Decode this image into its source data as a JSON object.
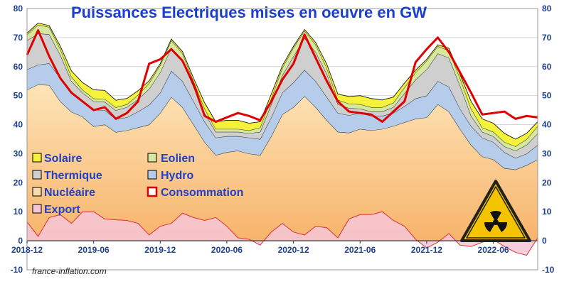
{
  "chart_data": {
    "type": "area",
    "title": "Puissances Electriques mises en oeuvre en GW",
    "watermark": "france-inflation.com",
    "ylim": [
      -10,
      80
    ],
    "yticks": [
      -10,
      0,
      10,
      20,
      30,
      40,
      50,
      60,
      70,
      80
    ],
    "xticks": [
      "2018-12",
      "2019-06",
      "2019-12",
      "2020-06",
      "2020-12",
      "2021-06",
      "2021-12",
      "2022-06"
    ],
    "stack_order": [
      "Nucléaire",
      "Hydro",
      "Thermique",
      "Eolien",
      "Solaire"
    ],
    "x": [
      "2018-12",
      "2019-01",
      "2019-02",
      "2019-03",
      "2019-04",
      "2019-05",
      "2019-06",
      "2019-07",
      "2019-08",
      "2019-09",
      "2019-10",
      "2019-11",
      "2019-12",
      "2020-01",
      "2020-02",
      "2020-03",
      "2020-04",
      "2020-05",
      "2020-06",
      "2020-07",
      "2020-08",
      "2020-09",
      "2020-10",
      "2020-11",
      "2020-12",
      "2021-01",
      "2021-02",
      "2021-03",
      "2021-04",
      "2021-05",
      "2021-06",
      "2021-07",
      "2021-08",
      "2021-09",
      "2021-10",
      "2021-11",
      "2021-12",
      "2022-01",
      "2022-02",
      "2022-03",
      "2022-04",
      "2022-05",
      "2022-06",
      "2022-07",
      "2022-08",
      "2022-09",
      "2022-10"
    ],
    "series": [
      {
        "name": "Nucléaire",
        "color": "#f9c88a",
        "values": [
          52.0,
          53.8,
          53.6,
          48.0,
          44.4,
          42.7,
          39.4,
          40.0,
          37.4,
          38.0,
          39.0,
          40.0,
          44.0,
          49.5,
          46.0,
          40.0,
          34.0,
          29.5,
          30.5,
          31.0,
          30.0,
          29.5,
          36.0,
          43.5,
          46.0,
          49.8,
          46.0,
          41.5,
          37.5,
          37.2,
          38.5,
          38.0,
          38.5,
          39.5,
          40.8,
          42.0,
          42.5,
          47.0,
          44.5,
          38.5,
          33.0,
          29.0,
          28.0,
          25.0,
          24.5,
          26.0,
          28.0
        ]
      },
      {
        "name": "Hydro",
        "color": "#b5cdea",
        "values": [
          7.0,
          6.8,
          7.5,
          8.0,
          6.6,
          5.3,
          5.6,
          5.0,
          4.5,
          4.5,
          5.5,
          6.8,
          7.0,
          9.0,
          9.0,
          8.0,
          7.0,
          6.0,
          5.5,
          5.0,
          5.5,
          5.5,
          6.5,
          7.5,
          8.5,
          9.0,
          9.0,
          8.0,
          6.5,
          6.0,
          5.5,
          5.0,
          4.5,
          4.5,
          5.5,
          7.0,
          7.5,
          8.0,
          8.5,
          7.0,
          6.5,
          6.5,
          6.0,
          5.5,
          4.0,
          4.0,
          5.0
        ]
      },
      {
        "name": "Thermique",
        "color": "#cfcfcf",
        "values": [
          10.0,
          10.8,
          10.0,
          8.0,
          4.0,
          3.0,
          3.0,
          2.8,
          3.0,
          3.5,
          4.2,
          5.5,
          7.0,
          8.0,
          7.0,
          5.0,
          3.0,
          2.0,
          1.5,
          1.5,
          1.5,
          2.5,
          4.5,
          6.0,
          9.0,
          11.0,
          10.0,
          8.0,
          3.0,
          2.5,
          1.5,
          1.5,
          1.5,
          2.0,
          4.5,
          6.5,
          9.0,
          9.5,
          10.0,
          8.0,
          3.5,
          2.0,
          2.0,
          2.0,
          2.5,
          3.0,
          4.0
        ]
      },
      {
        "name": "Eolien",
        "color": "#d6e8a0",
        "values": [
          2.0,
          3.0,
          2.5,
          2.0,
          1.5,
          1.0,
          1.0,
          1.0,
          1.0,
          1.0,
          1.5,
          2.0,
          2.5,
          2.5,
          2.5,
          2.0,
          1.5,
          1.0,
          1.0,
          1.0,
          1.0,
          1.5,
          2.0,
          2.5,
          3.0,
          2.5,
          2.5,
          2.0,
          1.5,
          1.5,
          1.5,
          1.5,
          1.5,
          1.5,
          2.0,
          2.5,
          3.0,
          2.5,
          2.5,
          2.5,
          2.5,
          1.5,
          1.5,
          1.5,
          1.5,
          2.0,
          2.5
        ]
      },
      {
        "name": "Solaire",
        "color": "#f5f23a",
        "values": [
          0.5,
          0.6,
          0.5,
          1.0,
          2.0,
          2.5,
          3.0,
          3.0,
          2.5,
          2.0,
          1.5,
          0.8,
          0.5,
          0.5,
          0.7,
          1.0,
          2.0,
          2.5,
          3.0,
          3.0,
          2.5,
          2.0,
          1.5,
          0.8,
          0.5,
          0.5,
          0.8,
          1.3,
          2.0,
          2.5,
          3.0,
          3.0,
          2.5,
          2.0,
          1.5,
          0.8,
          0.5,
          0.5,
          0.8,
          1.3,
          2.5,
          3.0,
          3.0,
          3.0,
          2.5,
          2.0,
          1.5
        ]
      },
      {
        "name": "Consommation",
        "color": "#e00000",
        "values": [
          64.0,
          72.5,
          63.5,
          56.0,
          51.0,
          48.0,
          45.0,
          46.0,
          42.0,
          44.0,
          48.0,
          61.0,
          62.5,
          66.0,
          62.0,
          54.0,
          43.0,
          41.0,
          42.5,
          44.0,
          43.0,
          41.5,
          48.0,
          55.5,
          61.0,
          71.0,
          63.0,
          55.0,
          48.0,
          44.5,
          44.0,
          43.5,
          41.0,
          44.5,
          48.0,
          61.5,
          66.0,
          70.0,
          65.0,
          58.0,
          51.0,
          43.5,
          44.0,
          44.5,
          42.0,
          43.0,
          42.5
        ]
      },
      {
        "name": "Export",
        "color": "#f6c6d8",
        "values": [
          6.5,
          1.5,
          8.0,
          9.0,
          6.0,
          10.0,
          10.0,
          7.5,
          7.2,
          7.0,
          6.0,
          2.0,
          5.0,
          6.0,
          9.5,
          8.0,
          7.0,
          8.0,
          5.0,
          1.0,
          0.5,
          -1.5,
          3.0,
          6.0,
          3.0,
          2.0,
          5.0,
          4.5,
          1.0,
          7.5,
          9.0,
          9.0,
          10.0,
          7.0,
          5.0,
          0.5,
          -2.5,
          -0.5,
          2.5,
          -1.5,
          -2.0,
          -0.5,
          0.5,
          -2.0,
          -4.0,
          -5.0,
          1.0
        ]
      }
    ]
  },
  "legend": {
    "solaire": {
      "label": "Solaire",
      "color": "#f5f23a"
    },
    "eolien": {
      "label": "Eolien",
      "color": "#d6e8a0"
    },
    "thermique": {
      "label": "Thermique",
      "color": "#cfcfcf"
    },
    "hydro": {
      "label": "Hydro",
      "color": "#b5cdea"
    },
    "nucleaire": {
      "label": "Nucléaire",
      "color": "#f9c88a"
    },
    "consommation": {
      "label": "Consommation",
      "color": "#e00000"
    },
    "export": {
      "label": "Export",
      "color": "#f6c6d8"
    }
  },
  "icons": {
    "badge": "radiation-hazard-icon",
    "badge_color": "#f5c400"
  }
}
